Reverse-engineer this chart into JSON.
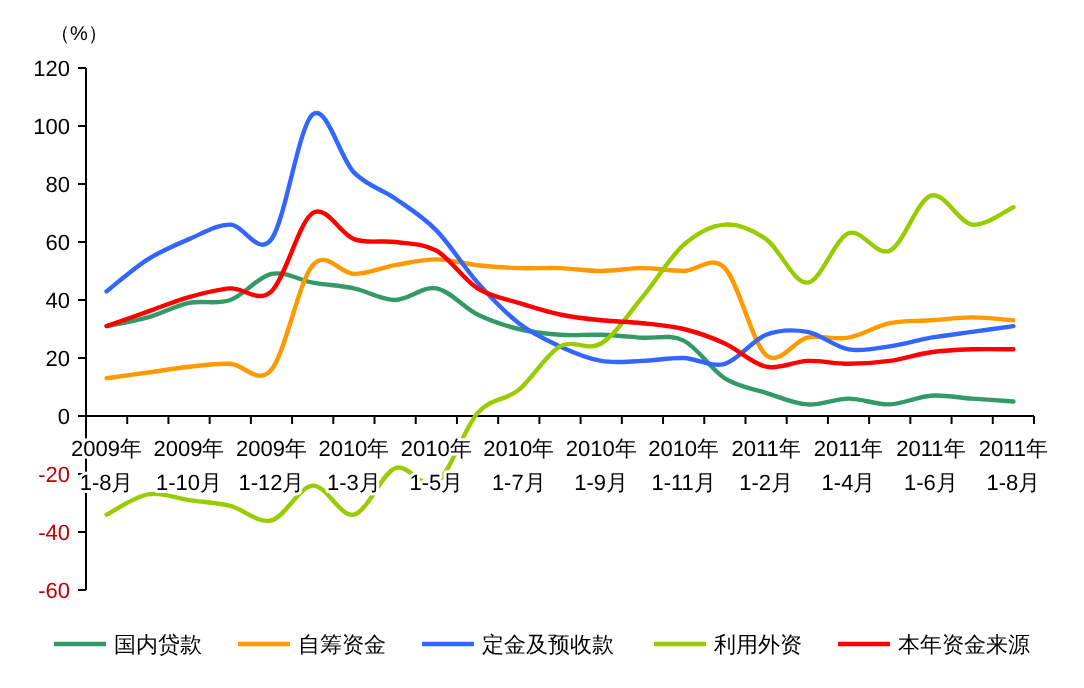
{
  "chart_data": {
    "type": "line",
    "ylabel": "（%）",
    "categories": [
      "2009年\n1-8月",
      null,
      "2009年\n1-10月",
      null,
      "2009年\n1-12月",
      null,
      "2010年\n1-3月",
      null,
      "2010年\n1-5月",
      null,
      "2010年\n1-7月",
      null,
      "2010年\n1-9月",
      null,
      "2010年\n1-11月",
      null,
      "2011年\n1-2月",
      null,
      "2011年\n1-4月",
      null,
      "2011年\n1-6月",
      null,
      "2011年\n1-8月"
    ],
    "series": [
      {
        "name": "国内贷款",
        "color": "#339966",
        "values": [
          31,
          34,
          39,
          40,
          49,
          46,
          44,
          40,
          44,
          35,
          30,
          28,
          28,
          27,
          26,
          13,
          8,
          4,
          6,
          4,
          7,
          6,
          5
        ]
      },
      {
        "name": "自筹资金",
        "color": "#ff9900",
        "values": [
          13,
          15,
          17,
          18,
          16,
          52,
          49,
          52,
          54,
          52,
          51,
          51,
          50,
          51,
          50,
          51,
          21,
          27,
          27,
          32,
          33,
          34,
          33
        ]
      },
      {
        "name": "定金及预收款",
        "color": "#3366ff",
        "values": [
          43,
          54,
          61,
          66,
          61,
          104,
          84,
          75,
          64,
          46,
          32,
          24,
          19,
          19,
          20,
          18,
          28,
          29,
          23,
          24,
          27,
          29,
          31
        ]
      },
      {
        "name": "利用外资",
        "color": "#99cc00",
        "values": [
          -34,
          -27,
          -29,
          -31,
          -36,
          -24,
          -34,
          -18,
          -23,
          1,
          9,
          24,
          25,
          41,
          59,
          66,
          61,
          46,
          63,
          57,
          76,
          66,
          72
        ]
      },
      {
        "name": "本年资金来源",
        "color": "#ff0000",
        "values": [
          31,
          36,
          41,
          44,
          43,
          70,
          61,
          60,
          57,
          44,
          39,
          35,
          33,
          32,
          30,
          25,
          17,
          19,
          18,
          19,
          22,
          23,
          23
        ]
      }
    ],
    "ylim": [
      -60,
      120
    ],
    "yticks": [
      -60,
      -40,
      -20,
      0,
      20,
      40,
      60,
      80,
      100,
      120
    ],
    "grid": false,
    "legend": "bottom",
    "marker": "none",
    "line_style": "solid"
  }
}
